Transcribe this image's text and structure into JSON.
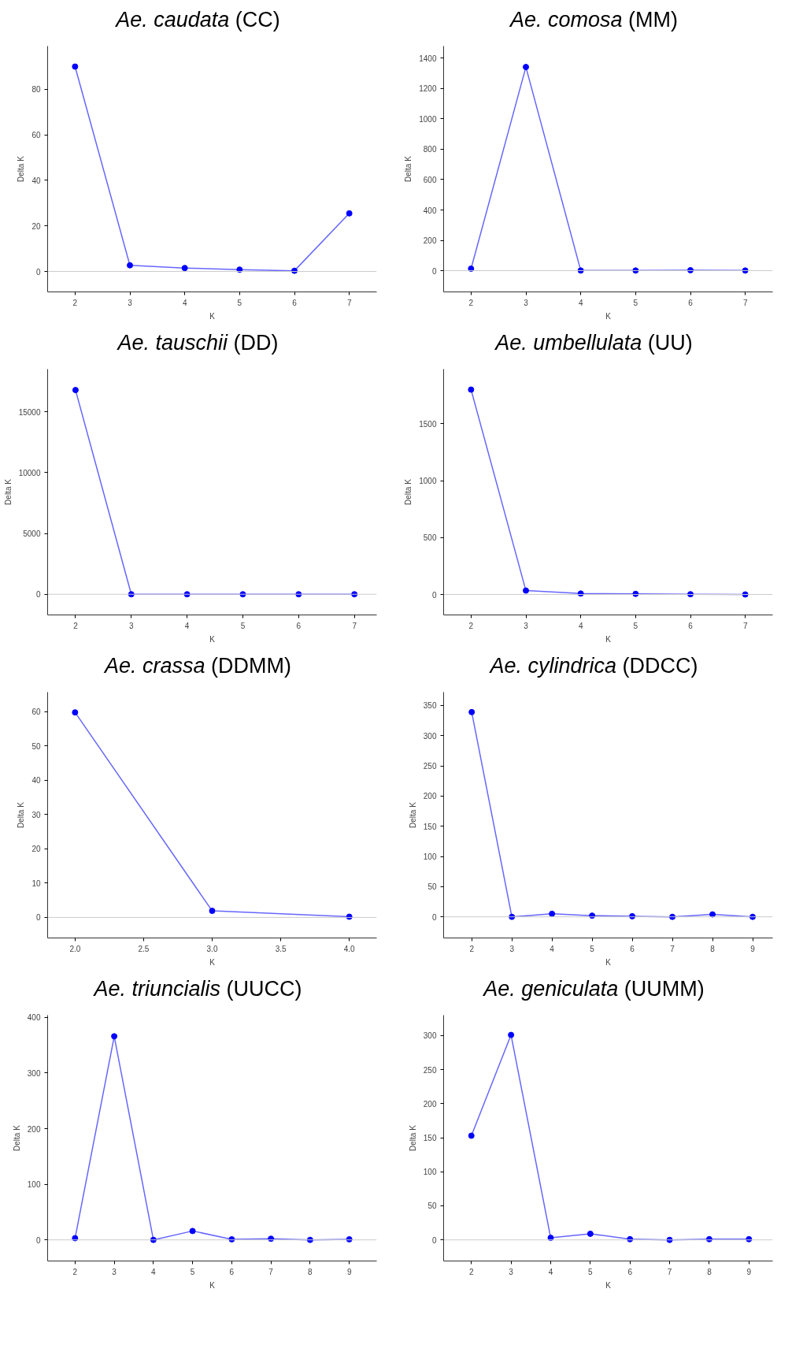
{
  "chart_data": [
    {
      "type": "line",
      "title": "Ae. caudata (CC)",
      "xlabel": "K",
      "ylabel": "Delta K",
      "x": [
        2,
        3,
        4,
        5,
        6,
        7
      ],
      "xlim": [
        1.5,
        7.5
      ],
      "xticks": [
        2,
        3,
        4,
        5,
        6,
        7
      ],
      "ylim": [
        -9,
        99
      ],
      "yticks": [
        0,
        20,
        40,
        60,
        80
      ],
      "marker": "circle",
      "grid": false,
      "ref_lines": [
        {
          "axis": "y",
          "value": 0,
          "color": "#cccccc"
        }
      ],
      "series": [
        {
          "color": "#0000ff",
          "values": [
            90,
            2.7,
            1.5,
            0.8,
            0.3,
            25.5
          ]
        }
      ]
    },
    {
      "type": "line",
      "title": "Ae. comosa (MM)",
      "xlabel": "K",
      "ylabel": "Delta K",
      "x": [
        2,
        3,
        4,
        5,
        6,
        7
      ],
      "xlim": [
        1.5,
        7.5
      ],
      "xticks": [
        2,
        3,
        4,
        5,
        6,
        7
      ],
      "ylim": [
        -140,
        1480
      ],
      "yticks": [
        0,
        200,
        400,
        600,
        800,
        1000,
        1200,
        1400
      ],
      "marker": "circle",
      "grid": false,
      "ref_lines": [
        {
          "axis": "y",
          "value": 0,
          "color": "#cccccc"
        }
      ],
      "series": [
        {
          "color": "#0000ff",
          "values": [
            13,
            1342,
            1,
            1,
            3,
            1
          ]
        }
      ]
    },
    {
      "type": "line",
      "title": "Ae. tauschii (DD)",
      "xlabel": "K",
      "ylabel": "Delta K",
      "x": [
        2,
        3,
        4,
        5,
        6,
        7
      ],
      "xlim": [
        1.5,
        7.4
      ],
      "xticks": [
        2,
        3,
        4,
        5,
        6,
        7
      ],
      "ylim": [
        -1700,
        18500
      ],
      "yticks": [
        0,
        5000,
        10000,
        15000
      ],
      "marker": "circle",
      "grid": false,
      "ref_lines": [
        {
          "axis": "y",
          "value": 0,
          "color": "#cccccc"
        }
      ],
      "series": [
        {
          "color": "#0000ff",
          "values": [
            16780,
            0,
            0,
            0,
            0,
            0
          ]
        }
      ]
    },
    {
      "type": "line",
      "title": "Ae. umbellulata (UU)",
      "xlabel": "K",
      "ylabel": "Delta K",
      "x": [
        2,
        3,
        4,
        5,
        6,
        7
      ],
      "xlim": [
        1.5,
        7.5
      ],
      "xticks": [
        2,
        3,
        4,
        5,
        6,
        7
      ],
      "ylim": [
        -180,
        1980
      ],
      "yticks": [
        0,
        500,
        1000,
        1500
      ],
      "marker": "circle",
      "grid": false,
      "ref_lines": [
        {
          "axis": "y",
          "value": 0,
          "color": "#cccccc"
        }
      ],
      "series": [
        {
          "color": "#0000ff",
          "values": [
            1800,
            34,
            8,
            5,
            2,
            0
          ]
        }
      ]
    },
    {
      "type": "line",
      "title": "Ae. crassa (DDMM)",
      "xlabel": "K",
      "ylabel": "Delta K",
      "x": [
        2.0,
        3.0,
        4.0
      ],
      "xlim": [
        1.8,
        4.2
      ],
      "xticks": [
        {
          "value": 2,
          "label": "2.0"
        },
        {
          "value": 2.5,
          "label": "2.5"
        },
        {
          "value": 3,
          "label": "3.0"
        },
        {
          "value": 3.5,
          "label": "3.5"
        },
        {
          "value": 4,
          "label": "4.0"
        }
      ],
      "ylim": [
        -6,
        65.7
      ],
      "yticks": [
        0,
        10,
        20,
        30,
        40,
        50,
        60
      ],
      "marker": "circle",
      "grid": false,
      "ref_lines": [
        {
          "axis": "y",
          "value": 0,
          "color": "#cccccc"
        }
      ],
      "series": [
        {
          "color": "#0000ff",
          "values": [
            59.8,
            1.9,
            0.2
          ]
        }
      ]
    },
    {
      "type": "line",
      "title": "Ae. cylindrica (DDCC)",
      "xlabel": "K",
      "ylabel": "Delta K",
      "x": [
        2,
        3,
        4,
        5,
        6,
        7,
        8,
        9
      ],
      "xlim": [
        1.3,
        9.5
      ],
      "xticks": [
        2,
        3,
        4,
        5,
        6,
        7,
        8,
        9
      ],
      "ylim": [
        -35,
        372
      ],
      "yticks": [
        0,
        50,
        100,
        150,
        200,
        250,
        300,
        350
      ],
      "marker": "circle",
      "grid": false,
      "ref_lines": [
        {
          "axis": "y",
          "value": 0,
          "color": "#cccccc"
        }
      ],
      "series": [
        {
          "color": "#0000ff",
          "values": [
            339,
            0,
            5,
            2,
            1,
            0,
            4,
            0
          ]
        }
      ]
    },
    {
      "type": "line",
      "title": "Ae. triuncialis (UUCC)",
      "xlabel": "K",
      "ylabel": "Delta K",
      "x": [
        2,
        3,
        4,
        5,
        6,
        7,
        8,
        9
      ],
      "xlim": [
        1.3,
        9.7
      ],
      "xticks": [
        2,
        3,
        4,
        5,
        6,
        7,
        8,
        9
      ],
      "ylim": [
        -38,
        404
      ],
      "yticks": [
        0,
        100,
        200,
        300,
        400
      ],
      "marker": "circle",
      "grid": false,
      "ref_lines": [
        {
          "axis": "y",
          "value": 0,
          "color": "#cccccc"
        }
      ],
      "series": [
        {
          "color": "#0000ff",
          "values": [
            3,
            366,
            0,
            16,
            1,
            2,
            0,
            1
          ]
        }
      ]
    },
    {
      "type": "line",
      "title": "Ae. geniculata (UUMM)",
      "xlabel": "K",
      "ylabel": "Delta K",
      "x": [
        2,
        3,
        4,
        5,
        6,
        7,
        8,
        9
      ],
      "xlim": [
        1.3,
        9.6
      ],
      "xticks": [
        2,
        3,
        4,
        5,
        6,
        7,
        8,
        9
      ],
      "ylim": [
        -31,
        330
      ],
      "yticks": [
        0,
        50,
        100,
        150,
        200,
        250,
        300
      ],
      "marker": "circle",
      "grid": false,
      "ref_lines": [
        {
          "axis": "y",
          "value": 0,
          "color": "#cccccc"
        }
      ],
      "series": [
        {
          "color": "#0000ff",
          "values": [
            153,
            301,
            3,
            9,
            1,
            0,
            1,
            1
          ]
        }
      ]
    }
  ]
}
